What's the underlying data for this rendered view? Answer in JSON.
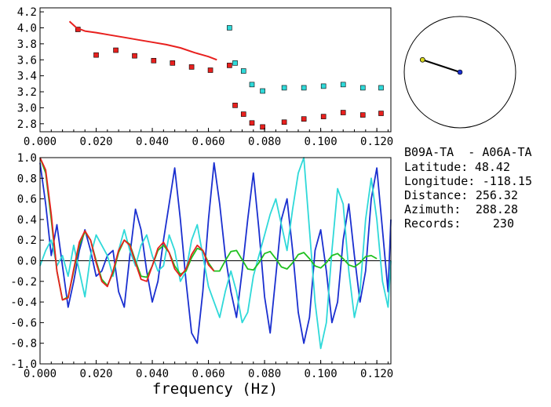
{
  "chart_data": [
    {
      "type": "scatter",
      "xlim": [
        0.0,
        0.125
      ],
      "ylim": [
        2.7,
        4.25
      ],
      "x_ticks": [
        "0.000",
        "0.020",
        "0.040",
        "0.060",
        "0.080",
        "0.100",
        "0.120"
      ],
      "y_ticks": [
        "4.2",
        "4.0",
        "3.8",
        "3.6",
        "3.4",
        "3.2",
        "3.0",
        "2.8"
      ],
      "y_tick_values": [
        4.2,
        4.0,
        3.8,
        3.6,
        3.4,
        3.2,
        3.0,
        2.8
      ],
      "grid": false,
      "series": [
        {
          "color": "#e8201e",
          "marker": "square",
          "x": [
            0.0135,
            0.02,
            0.027,
            0.0337,
            0.0405,
            0.0472,
            0.054,
            0.0607,
            0.0675,
            0.0695,
            0.0725,
            0.0755,
            0.0793,
            0.087,
            0.094,
            0.101,
            0.108,
            0.115,
            0.1215
          ],
          "y": [
            3.98,
            3.66,
            3.72,
            3.65,
            3.59,
            3.56,
            3.51,
            3.47,
            3.53,
            3.03,
            2.92,
            2.81,
            2.76,
            2.82,
            2.86,
            2.89,
            2.94,
            2.91,
            2.93
          ]
        },
        {
          "color": "#2fd9d9",
          "marker": "square",
          "x": [
            0.0675,
            0.0695,
            0.0725,
            0.0755,
            0.0793,
            0.087,
            0.094,
            0.101,
            0.108,
            0.115,
            0.1215
          ],
          "y": [
            4.0,
            3.56,
            3.46,
            3.29,
            3.21,
            3.25,
            3.25,
            3.27,
            3.29,
            3.25,
            3.25
          ]
        },
        {
          "color": "#e8201e",
          "marker": "none",
          "x": [
            0.0105,
            0.013,
            0.016,
            0.02,
            0.025,
            0.03,
            0.035,
            0.04,
            0.045,
            0.05,
            0.055,
            0.06,
            0.063
          ],
          "y": [
            4.08,
            4.0,
            3.96,
            3.94,
            3.91,
            3.88,
            3.85,
            3.82,
            3.79,
            3.75,
            3.69,
            3.64,
            3.6
          ]
        }
      ]
    },
    {
      "type": "line",
      "xlim": [
        0.0,
        0.125
      ],
      "ylim": [
        -1.0,
        1.0
      ],
      "x_ticks": [
        "0.000",
        "0.020",
        "0.040",
        "0.060",
        "0.080",
        "0.100",
        "0.120"
      ],
      "y_ticks": [
        "1.0",
        "0.8",
        "0.6",
        "0.4",
        "0.2",
        "0.0",
        "-0.2",
        "-0.4",
        "-0.6",
        "-0.8",
        "-1.0"
      ],
      "y_tick_values": [
        1.0,
        0.8,
        0.6,
        0.4,
        0.2,
        0.0,
        -0.2,
        -0.4,
        -0.6,
        -0.8,
        -1.0
      ],
      "xlabel": "frequency (Hz)",
      "grid": false,
      "zero_line": true,
      "series": [
        {
          "color": "#1a2fd0",
          "x": [
            0.0,
            0.002,
            0.004,
            0.006,
            0.008,
            0.01,
            0.012,
            0.014,
            0.016,
            0.018,
            0.02,
            0.022,
            0.024,
            0.026,
            0.028,
            0.03,
            0.032,
            0.034,
            0.036,
            0.038,
            0.04,
            0.042,
            0.044,
            0.046,
            0.048,
            0.05,
            0.052,
            0.054,
            0.056,
            0.058,
            0.06,
            0.062,
            0.064,
            0.066,
            0.068,
            0.07,
            0.072,
            0.074,
            0.076,
            0.078,
            0.08,
            0.082,
            0.084,
            0.086,
            0.088,
            0.09,
            0.092,
            0.094,
            0.096,
            0.098,
            0.1,
            0.102,
            0.104,
            0.106,
            0.108,
            0.11,
            0.112,
            0.114,
            0.116,
            0.118,
            0.12,
            0.122,
            0.124,
            0.125
          ],
          "y": [
            0.95,
            0.55,
            0.05,
            0.35,
            -0.05,
            -0.45,
            -0.2,
            0.1,
            0.3,
            0.1,
            -0.15,
            -0.1,
            0.05,
            0.1,
            -0.3,
            -0.45,
            0.05,
            0.5,
            0.3,
            -0.1,
            -0.4,
            -0.2,
            0.2,
            0.55,
            0.9,
            0.4,
            -0.2,
            -0.7,
            -0.8,
            -0.3,
            0.4,
            0.95,
            0.55,
            0.05,
            -0.3,
            -0.55,
            -0.1,
            0.4,
            0.85,
            0.3,
            -0.35,
            -0.7,
            -0.15,
            0.4,
            0.6,
            0.1,
            -0.5,
            -0.8,
            -0.55,
            0.1,
            0.3,
            -0.1,
            -0.6,
            -0.4,
            0.2,
            0.55,
            0.05,
            -0.4,
            -0.1,
            0.6,
            0.9,
            0.3,
            -0.3,
            0.4
          ]
        },
        {
          "color": "#2fd9d9",
          "x": [
            0.0,
            0.002,
            0.004,
            0.006,
            0.008,
            0.01,
            0.012,
            0.014,
            0.016,
            0.018,
            0.02,
            0.022,
            0.024,
            0.026,
            0.028,
            0.03,
            0.032,
            0.034,
            0.036,
            0.038,
            0.04,
            0.042,
            0.044,
            0.046,
            0.048,
            0.05,
            0.052,
            0.054,
            0.056,
            0.058,
            0.06,
            0.062,
            0.064,
            0.066,
            0.068,
            0.07,
            0.072,
            0.074,
            0.076,
            0.078,
            0.08,
            0.082,
            0.084,
            0.086,
            0.088,
            0.09,
            0.092,
            0.094,
            0.096,
            0.098,
            0.1,
            0.102,
            0.104,
            0.106,
            0.108,
            0.11,
            0.112,
            0.114,
            0.116,
            0.118,
            0.12,
            0.122,
            0.124,
            0.125
          ],
          "y": [
            -0.05,
            0.1,
            0.2,
            -0.05,
            0.05,
            -0.15,
            0.15,
            -0.1,
            -0.35,
            0.05,
            0.25,
            0.15,
            0.05,
            -0.15,
            0.1,
            0.3,
            0.1,
            -0.05,
            0.15,
            0.25,
            0.05,
            -0.1,
            -0.05,
            0.25,
            0.1,
            -0.2,
            -0.1,
            0.2,
            0.35,
            0.05,
            -0.25,
            -0.4,
            -0.55,
            -0.3,
            -0.1,
            -0.3,
            -0.6,
            -0.5,
            -0.15,
            0.05,
            0.25,
            0.45,
            0.6,
            0.35,
            0.1,
            0.5,
            0.85,
            1.0,
            0.3,
            -0.4,
            -0.85,
            -0.6,
            0.1,
            0.7,
            0.55,
            -0.1,
            -0.55,
            -0.3,
            0.4,
            0.8,
            0.4,
            -0.2,
            -0.45,
            0.0
          ]
        },
        {
          "color": "#20c020",
          "x": [
            0.0,
            0.002,
            0.004,
            0.006,
            0.008,
            0.01,
            0.012,
            0.014,
            0.016,
            0.018,
            0.02,
            0.022,
            0.024,
            0.026,
            0.028,
            0.03,
            0.032,
            0.034,
            0.036,
            0.038,
            0.04,
            0.042,
            0.044,
            0.046,
            0.048,
            0.05,
            0.052,
            0.054,
            0.056,
            0.058,
            0.06,
            0.062,
            0.064,
            0.066,
            0.068,
            0.07,
            0.072,
            0.074,
            0.076,
            0.078,
            0.08,
            0.082,
            0.084,
            0.086,
            0.088,
            0.09,
            0.092,
            0.094,
            0.096,
            0.098,
            0.1,
            0.102,
            0.104,
            0.106,
            0.108,
            0.11,
            0.112,
            0.114,
            0.116,
            0.118,
            0.12
          ],
          "y": [
            1.0,
            0.85,
            0.4,
            -0.1,
            -0.38,
            -0.35,
            -0.1,
            0.15,
            0.28,
            0.2,
            0.0,
            -0.18,
            -0.24,
            -0.12,
            0.08,
            0.2,
            0.16,
            0.0,
            -0.15,
            -0.16,
            -0.05,
            0.1,
            0.15,
            0.08,
            -0.05,
            -0.13,
            -0.1,
            0.03,
            0.12,
            0.1,
            -0.02,
            -0.1,
            -0.1,
            0.0,
            0.09,
            0.1,
            0.01,
            -0.08,
            -0.09,
            -0.02,
            0.07,
            0.09,
            0.02,
            -0.06,
            -0.08,
            -0.02,
            0.06,
            0.08,
            0.02,
            -0.05,
            -0.07,
            -0.02,
            0.05,
            0.07,
            0.02,
            -0.04,
            -0.06,
            -0.02,
            0.04,
            0.05,
            0.02
          ]
        },
        {
          "color": "#e8201e",
          "x": [
            0.0,
            0.002,
            0.004,
            0.006,
            0.008,
            0.01,
            0.012,
            0.014,
            0.016,
            0.018,
            0.02,
            0.022,
            0.024,
            0.026,
            0.028,
            0.03,
            0.032,
            0.034,
            0.036,
            0.038,
            0.04,
            0.042,
            0.044,
            0.046,
            0.048,
            0.05,
            0.052,
            0.054,
            0.056,
            0.058,
            0.06,
            0.062
          ],
          "y": [
            1.0,
            0.88,
            0.45,
            -0.1,
            -0.38,
            -0.36,
            -0.08,
            0.18,
            0.29,
            0.2,
            -0.02,
            -0.2,
            -0.25,
            -0.1,
            0.1,
            0.2,
            0.15,
            -0.02,
            -0.18,
            -0.2,
            -0.05,
            0.12,
            0.18,
            0.08,
            -0.08,
            -0.15,
            -0.08,
            0.06,
            0.15,
            0.1,
            -0.04,
            -0.1
          ]
        }
      ]
    }
  ],
  "map_inset": {
    "azimuth_deg": 288.28,
    "distance_fraction": 0.52,
    "circle_color": "#000000",
    "center_dot_color": "#1a2fd0",
    "end_dot_color": "#d8d820"
  },
  "info": {
    "station_pair": "B09A-TA  - A06A-TA",
    "rows": [
      {
        "label": "Latitude:",
        "value": "48.42"
      },
      {
        "label": "Longitude:",
        "value": "-118.15"
      },
      {
        "label": "Distance:",
        "value": "256.32"
      },
      {
        "label": "Azimuth:",
        "value": "288.28"
      },
      {
        "label": "Records:",
        "value": "230"
      }
    ]
  }
}
